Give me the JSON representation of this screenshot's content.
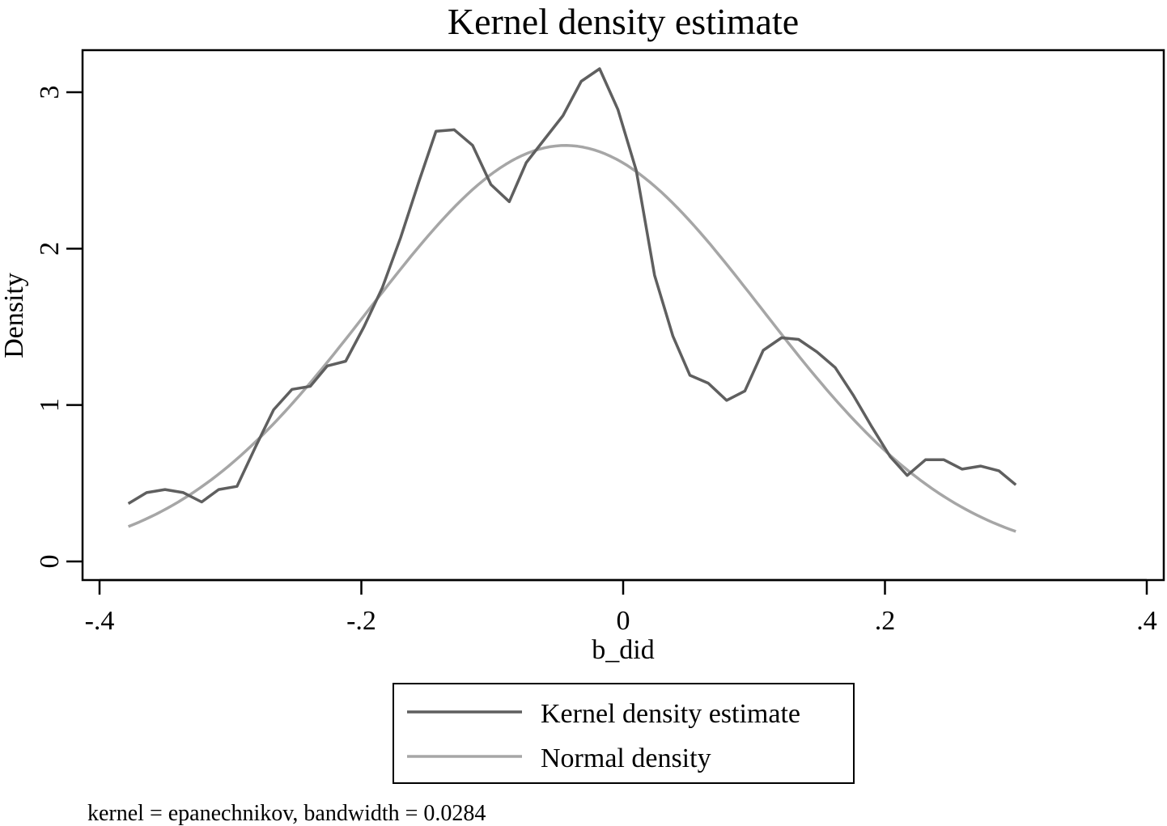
{
  "chart_data": {
    "type": "line",
    "title": "Kernel density estimate",
    "xlabel": "b_did",
    "ylabel": "Density",
    "xlim": [
      -0.4,
      0.4
    ],
    "ylim": [
      0,
      3.3
    ],
    "x_ticks": [
      -0.4,
      -0.2,
      0,
      0.2,
      0.4
    ],
    "x_tick_labels": [
      "-.4",
      "-.2",
      "0",
      ".2",
      ".4"
    ],
    "y_ticks": [
      0,
      1,
      2,
      3
    ],
    "y_tick_labels": [
      "0",
      "1",
      "2",
      "3"
    ],
    "grid": false,
    "legend_placement": "bottom",
    "note": "kernel = epanechnikov, bandwidth = 0.0284",
    "series": [
      {
        "name": "Kernel density estimate",
        "color": "#5f5f5f",
        "x": [
          -0.378,
          -0.364,
          -0.35,
          -0.336,
          -0.322,
          -0.309,
          -0.295,
          -0.281,
          -0.267,
          -0.253,
          -0.239,
          -0.226,
          -0.212,
          -0.198,
          -0.184,
          -0.17,
          -0.156,
          -0.143,
          -0.129,
          -0.115,
          -0.101,
          -0.087,
          -0.074,
          -0.06,
          -0.046,
          -0.032,
          -0.018,
          -0.004,
          0.01,
          0.024,
          0.038,
          0.051,
          0.065,
          0.079,
          0.093,
          0.107,
          0.121,
          0.134,
          0.148,
          0.162,
          0.176,
          0.19,
          0.204,
          0.217,
          0.231,
          0.245,
          0.259,
          0.273,
          0.287,
          0.3
        ],
        "y": [
          0.37,
          0.44,
          0.46,
          0.44,
          0.38,
          0.46,
          0.48,
          0.73,
          0.97,
          1.1,
          1.12,
          1.25,
          1.28,
          1.5,
          1.75,
          2.07,
          2.43,
          2.75,
          2.76,
          2.66,
          2.41,
          2.3,
          2.55,
          2.7,
          2.85,
          3.07,
          3.15,
          2.89,
          2.5,
          1.83,
          1.44,
          1.19,
          1.14,
          1.03,
          1.09,
          1.35,
          1.43,
          1.42,
          1.34,
          1.24,
          1.06,
          0.86,
          0.67,
          0.55,
          0.65,
          0.65,
          0.59,
          0.61,
          0.58,
          0.49
        ]
      },
      {
        "name": "Normal density",
        "color": "#a6a6a6",
        "mean": -0.044,
        "sd": 0.15,
        "x_range": [
          -0.378,
          0.3
        ]
      }
    ]
  }
}
